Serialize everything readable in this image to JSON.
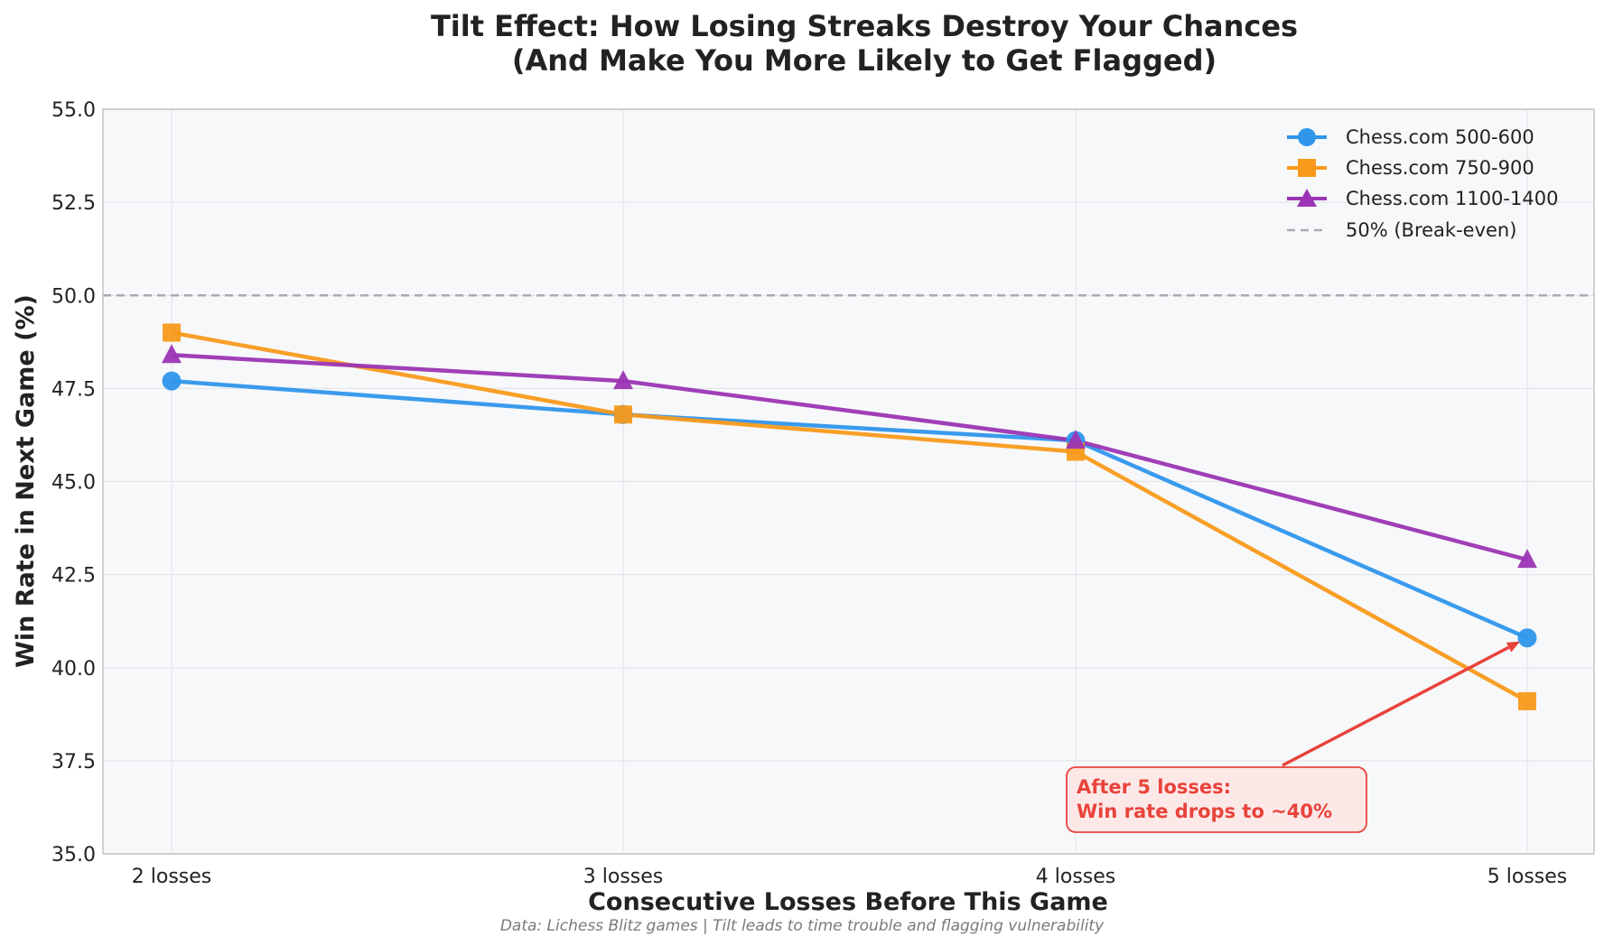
{
  "chart_data": {
    "type": "line",
    "title_line1": "Tilt Effect: How Losing Streaks Destroy Your Chances",
    "title_line2": "(And Make You More Likely to Get Flagged)",
    "xlabel": "Consecutive Losses Before This Game",
    "ylabel": "Win Rate in Next Game (%)",
    "categories": [
      "2 losses",
      "3 losses",
      "4 losses",
      "5 losses"
    ],
    "ylim": [
      35.0,
      55.0
    ],
    "yticks": [
      "35.0",
      "37.5",
      "40.0",
      "42.5",
      "45.0",
      "47.5",
      "50.0",
      "52.5",
      "55.0"
    ],
    "grid": true,
    "legend_position": "top-right",
    "series": [
      {
        "name": "Chess.com 500-600",
        "color": "#2f96ec",
        "marker": "circle",
        "values": [
          47.7,
          46.8,
          46.1,
          40.8
        ]
      },
      {
        "name": "Chess.com 750-900",
        "color": "#f89a1b",
        "marker": "square",
        "values": [
          49.0,
          46.8,
          45.8,
          39.1
        ]
      },
      {
        "name": "Chess.com 1100-1400",
        "color": "#9b35b3",
        "marker": "triangle",
        "values": [
          48.4,
          47.7,
          46.1,
          42.9
        ]
      }
    ],
    "reference_line": {
      "name": "50% (Break-even)",
      "value": 50.0,
      "color": "#aaaab2"
    },
    "annotation": {
      "line1": "After 5 losses:",
      "line2": "Win rate drops to ~40%",
      "target_category": "5 losses",
      "target_value": 40.8,
      "color": "#e8433b"
    },
    "caption": "Data: Lichess Blitz games | Tilt leads to time trouble and flagging vulnerability"
  }
}
